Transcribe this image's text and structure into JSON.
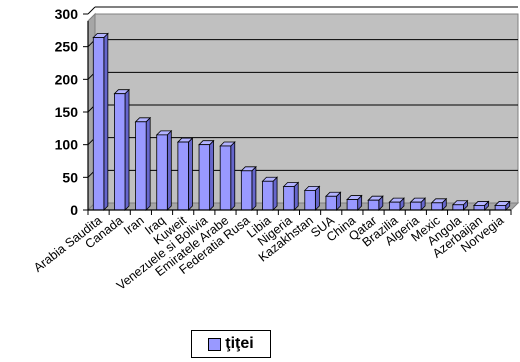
{
  "chart_data": {
    "type": "bar",
    "title": "",
    "xlabel": "",
    "ylabel": "",
    "ylim": [
      0,
      300
    ],
    "yticks": [
      0,
      50,
      100,
      150,
      200,
      250,
      300
    ],
    "grid": true,
    "legend_position": "bottom",
    "categories": [
      "Arabia Saudita",
      "Canada",
      "Iran",
      "Iraq",
      "Kuweit",
      "Venezuele si Bolivia",
      "Emiratele Arabe",
      "Federatia Rusa",
      "Libia",
      "Nigeria",
      "Kazakhstan",
      "SUA",
      "China",
      "Qatar",
      "Brazilia",
      "Algeria",
      "Mexic",
      "Angola",
      "Azerbaijan",
      "Norvegia"
    ],
    "series": [
      {
        "name": "ţiţei",
        "values": [
          264,
          178,
          135,
          115,
          104,
          100,
          98,
          60,
          44,
          36,
          30,
          21,
          16,
          15,
          12,
          12,
          11,
          8,
          7,
          7
        ]
      }
    ],
    "colors": {
      "bar": "#9999ff",
      "bar_side": "#6666cc",
      "plot_bg": "#c0c0c0",
      "grid": "#000000"
    }
  }
}
